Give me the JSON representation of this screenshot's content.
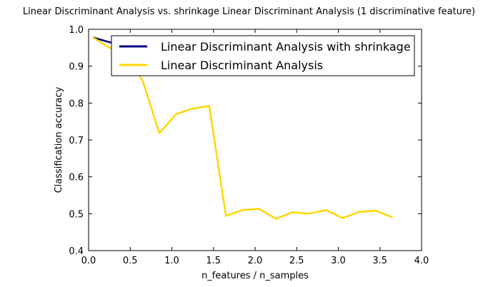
{
  "chart_data": {
    "type": "line",
    "title": "Linear Discriminant Analysis vs. shrinkage Linear Discriminant Analysis (1 discriminative feature)",
    "xlabel": "n_features / n_samples",
    "ylabel": "Classification accuracy",
    "xlim": [
      0,
      4
    ],
    "ylim": [
      0.4,
      1.0
    ],
    "xticks": [
      "0.0",
      "0.5",
      "1.0",
      "1.5",
      "2.0",
      "2.5",
      "3.0",
      "3.5",
      "4.0"
    ],
    "yticks": [
      "0.4",
      "0.5",
      "0.6",
      "0.7",
      "0.8",
      "0.9",
      "1.0"
    ],
    "grid": false,
    "legend_position": "top-right",
    "series": [
      {
        "name": "Linear Discriminant Analysis with shrinkage",
        "color": "#000080",
        "x": [
          0.05,
          0.25,
          0.45,
          0.65,
          0.85,
          1.05,
          1.25,
          1.45,
          1.65,
          1.85,
          2.05,
          2.25,
          2.45,
          2.65,
          2.85,
          3.05,
          3.25,
          3.45,
          3.65
        ],
        "y": [
          0.978,
          0.965,
          0.96,
          0.96,
          0.96,
          0.96,
          0.96,
          0.96,
          0.96,
          0.96,
          0.96,
          0.96,
          0.96,
          0.96,
          0.96,
          0.96,
          0.96,
          0.96,
          0.96
        ]
      },
      {
        "name": "Linear Discriminant Analysis",
        "color": "#FFD700",
        "x": [
          0.05,
          0.25,
          0.45,
          0.65,
          0.85,
          1.05,
          1.25,
          1.45,
          1.65,
          1.85,
          2.05,
          2.25,
          2.45,
          2.65,
          2.85,
          3.05,
          3.25,
          3.45,
          3.65
        ],
        "y": [
          0.978,
          0.95,
          0.93,
          0.86,
          0.718,
          0.77,
          0.785,
          0.792,
          0.494,
          0.51,
          0.513,
          0.486,
          0.504,
          0.5,
          0.51,
          0.488,
          0.505,
          0.508,
          0.49
        ]
      }
    ]
  }
}
